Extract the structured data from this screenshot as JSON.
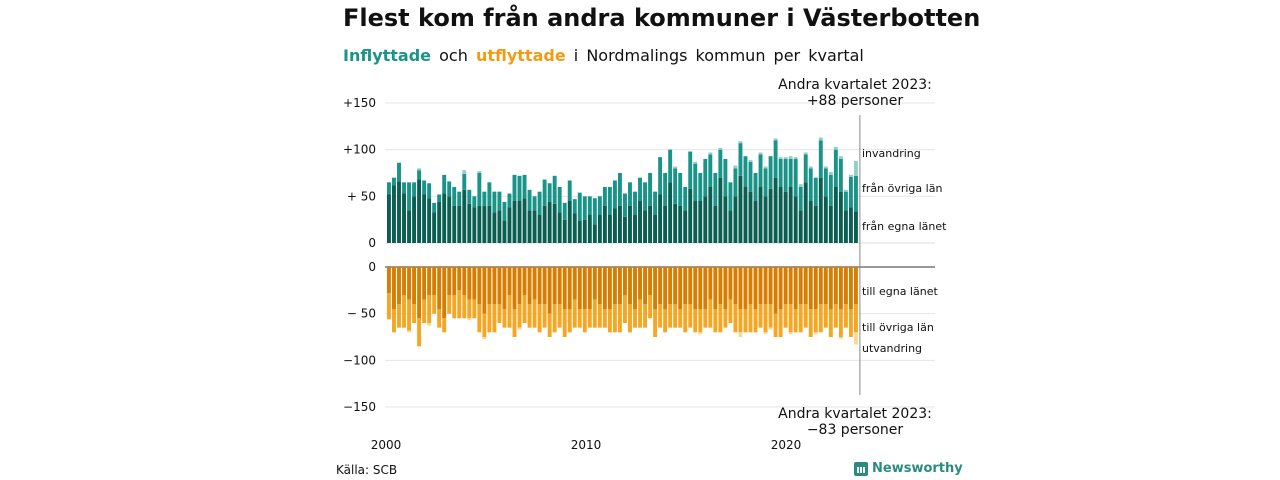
{
  "title": "Flest kom från andra kommuner i Västerbotten",
  "subtitle": {
    "in_word": "Inflyttade",
    "joiner": "och",
    "out_word": "utflyttade",
    "rest": "i Nordmalings kommun per kvartal"
  },
  "source": "Källa: SCB",
  "brand": "Newsworthy",
  "annotations": {
    "top": [
      "Andra kvartalet 2023:",
      "+88 personer"
    ],
    "bottom": [
      "Andra kvartalet 2023:",
      "−83 personer"
    ]
  },
  "colors": {
    "in_local": "#0b5e52",
    "in_other": "#1a9488",
    "in_foreign": "#8fd1c9",
    "out_local": "#d97d00",
    "out_other": "#f5a623",
    "out_foreign": "#fbd79b"
  },
  "chart_data": {
    "type": "bar",
    "stacked": true,
    "x_axis": {
      "ticks": [
        "2000",
        "2010",
        "2020"
      ],
      "start": "2000 Q1",
      "end": "2023 Q2"
    },
    "y_axis_top": {
      "ticks": [
        "+150",
        "+100",
        "+ 50",
        "0"
      ],
      "range": [
        0,
        150
      ]
    },
    "y_axis_bottom": {
      "ticks": [
        "0",
        "− 50",
        "−100",
        "−150"
      ],
      "range": [
        -150,
        0
      ]
    },
    "series_labels": {
      "in_foreign": "invandring",
      "in_other": "från övriga län",
      "in_local": "från egna länet",
      "out_local": "till egna länet",
      "out_other": "till övriga län",
      "out_foreign": "utvandring"
    },
    "in_local": [
      52,
      62,
      66,
      53,
      35,
      50,
      68,
      52,
      48,
      33,
      44,
      53,
      50,
      40,
      40,
      57,
      42,
      38,
      40,
      40,
      40,
      33,
      35,
      24,
      38,
      45,
      45,
      48,
      35,
      35,
      30,
      40,
      44,
      42,
      33,
      25,
      45,
      32,
      24,
      25,
      30,
      20,
      30,
      40,
      30,
      37,
      40,
      28,
      40,
      30,
      45,
      35,
      40,
      30,
      52,
      40,
      65,
      42,
      40,
      35,
      58,
      45,
      45,
      50,
      60,
      40,
      70,
      50,
      35,
      50,
      72,
      60,
      55,
      45,
      60,
      50,
      58,
      70,
      60,
      55,
      60,
      50,
      35,
      65,
      45,
      40,
      70,
      50,
      40,
      60,
      55,
      35,
      38,
      34
    ],
    "in_other": [
      13,
      8,
      20,
      12,
      30,
      15,
      10,
      15,
      16,
      10,
      8,
      20,
      16,
      20,
      15,
      17,
      15,
      12,
      35,
      15,
      25,
      22,
      20,
      20,
      15,
      28,
      27,
      25,
      22,
      15,
      25,
      28,
      20,
      30,
      27,
      18,
      22,
      15,
      30,
      25,
      20,
      28,
      20,
      20,
      30,
      30,
      35,
      25,
      25,
      25,
      25,
      30,
      35,
      25,
      40,
      35,
      35,
      38,
      35,
      25,
      40,
      40,
      30,
      40,
      35,
      35,
      30,
      40,
      30,
      30,
      35,
      33,
      32,
      30,
      35,
      30,
      35,
      40,
      30,
      35,
      30,
      40,
      25,
      30,
      35,
      30,
      40,
      30,
      33,
      40,
      35,
      20,
      33,
      38
    ],
    "in_foreign": [
      0,
      0,
      0,
      0,
      0,
      0,
      2,
      0,
      0,
      0,
      0,
      0,
      0,
      0,
      0,
      4,
      0,
      0,
      2,
      0,
      0,
      0,
      0,
      0,
      0,
      0,
      0,
      0,
      0,
      0,
      0,
      0,
      0,
      0,
      0,
      0,
      0,
      0,
      0,
      0,
      0,
      0,
      0,
      0,
      0,
      0,
      0,
      0,
      0,
      0,
      0,
      0,
      0,
      0,
      0,
      0,
      0,
      2,
      0,
      0,
      0,
      2,
      0,
      0,
      2,
      0,
      2,
      0,
      0,
      3,
      2,
      0,
      2,
      0,
      2,
      2,
      0,
      2,
      2,
      2,
      3,
      2,
      3,
      2,
      2,
      0,
      3,
      2,
      3,
      3,
      3,
      2,
      2,
      16
    ],
    "out_local": [
      28,
      45,
      40,
      30,
      35,
      40,
      55,
      35,
      30,
      30,
      45,
      55,
      30,
      30,
      25,
      30,
      35,
      35,
      40,
      50,
      40,
      40,
      40,
      45,
      30,
      45,
      40,
      30,
      40,
      35,
      40,
      40,
      50,
      40,
      40,
      45,
      45,
      35,
      45,
      45,
      45,
      35,
      40,
      45,
      45,
      40,
      40,
      30,
      40,
      45,
      35,
      40,
      30,
      45,
      40,
      45,
      40,
      40,
      45,
      40,
      40,
      45,
      45,
      45,
      35,
      45,
      40,
      45,
      35,
      40,
      45,
      45,
      40,
      45,
      40,
      40,
      40,
      50,
      45,
      40,
      40,
      45,
      40,
      40,
      45,
      45,
      40,
      40,
      45,
      40,
      45,
      40,
      45,
      40
    ],
    "out_other": [
      28,
      25,
      25,
      35,
      33,
      20,
      30,
      25,
      30,
      20,
      20,
      15,
      20,
      25,
      30,
      25,
      20,
      20,
      30,
      25,
      30,
      30,
      20,
      20,
      35,
      30,
      25,
      30,
      25,
      30,
      30,
      25,
      25,
      30,
      25,
      30,
      25,
      30,
      20,
      25,
      20,
      30,
      25,
      20,
      25,
      30,
      30,
      30,
      30,
      20,
      30,
      25,
      25,
      30,
      25,
      25,
      25,
      25,
      20,
      30,
      25,
      25,
      25,
      20,
      30,
      25,
      30,
      20,
      25,
      30,
      25,
      25,
      30,
      25,
      25,
      30,
      25,
      25,
      30,
      25,
      30,
      25,
      30,
      25,
      30,
      25,
      30,
      25,
      30,
      25,
      30,
      25,
      30,
      30
    ],
    "out_foreign": [
      0,
      0,
      0,
      0,
      2,
      0,
      0,
      0,
      3,
      0,
      0,
      0,
      0,
      0,
      0,
      0,
      2,
      0,
      0,
      2,
      0,
      0,
      0,
      0,
      0,
      0,
      2,
      0,
      0,
      0,
      0,
      0,
      0,
      0,
      0,
      0,
      0,
      0,
      0,
      0,
      0,
      0,
      0,
      0,
      0,
      0,
      0,
      0,
      0,
      0,
      0,
      0,
      0,
      0,
      0,
      0,
      0,
      0,
      0,
      0,
      0,
      0,
      2,
      0,
      0,
      0,
      0,
      0,
      0,
      0,
      5,
      0,
      0,
      0,
      0,
      2,
      2,
      0,
      0,
      0,
      2,
      0,
      0,
      0,
      0,
      2,
      0,
      0,
      0,
      0,
      2,
      0,
      0,
      13
    ]
  }
}
